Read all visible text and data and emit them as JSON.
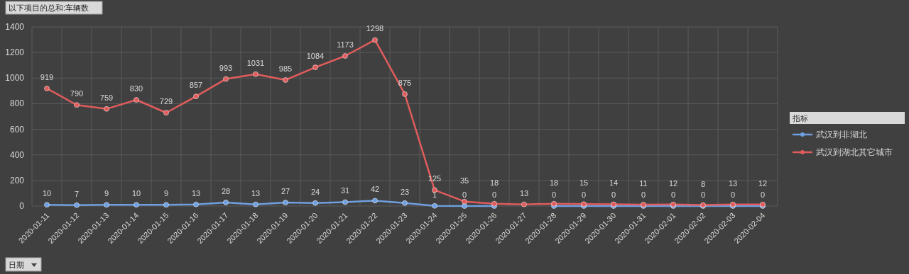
{
  "chart_data": {
    "type": "line",
    "title": "以下项目的总和:车辆数",
    "xlabel": "日期",
    "legend_title": "指标",
    "categories": [
      "2020-01-11",
      "2020-01-12",
      "2020-01-13",
      "2020-01-14",
      "2020-01-15",
      "2020-01-16",
      "2020-01-17",
      "2020-01-18",
      "2020-01-19",
      "2020-01-20",
      "2020-01-21",
      "2020-01-22",
      "2020-01-23",
      "2020-01-24",
      "2020-01-25",
      "2020-01-26",
      "2020-01-27",
      "2020-01-28",
      "2020-01-29",
      "2020-01-30",
      "2020-01-31",
      "2020-02-01",
      "2020-02-02",
      "2020-02-03",
      "2020-02-04"
    ],
    "series": [
      {
        "name": "武汉到非湖北",
        "color": "#6f9fe0",
        "values": [
          10,
          7,
          9,
          10,
          9,
          13,
          28,
          13,
          27,
          24,
          31,
          42,
          23,
          1,
          0,
          0,
          null,
          0,
          0,
          0,
          0,
          0,
          0,
          0,
          0
        ]
      },
      {
        "name": "武汉到湖北其它城市",
        "color": "#e05c5c",
        "values": [
          919,
          790,
          759,
          830,
          729,
          857,
          993,
          1031,
          985,
          1084,
          1173,
          1298,
          875,
          125,
          35,
          18,
          13,
          18,
          15,
          14,
          11,
          12,
          8,
          13,
          12
        ]
      }
    ],
    "ylim": [
      0,
      1400
    ],
    "yticks": [
      0,
      200,
      400,
      600,
      800,
      1000,
      1200,
      1400
    ],
    "grid": true,
    "legend": "right",
    "marker": "circle",
    "line_style": "solid",
    "data_labels": true
  }
}
